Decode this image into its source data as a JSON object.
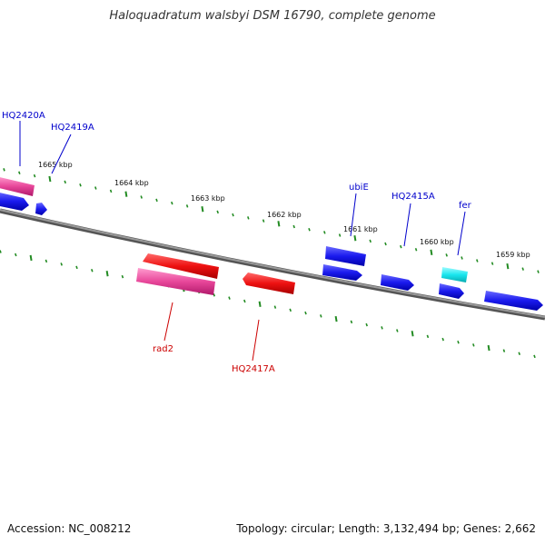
{
  "title": "Haloquadratum walsbyi DSM 16790, complete genome",
  "footer": {
    "accession": "Accession: NC_008212",
    "summary": "Topology: circular; Length: 3,132,494 bp; Genes: 2,662"
  },
  "colors": {
    "backbone": "#7a7a7a",
    "tick": "#228b22",
    "forward_gene_label": "#0000cc",
    "reverse_gene_label": "#cc0000",
    "cds_blue": "#1a1aee",
    "cds_red": "#ee1111",
    "cds_pink": "#e8479a",
    "cds_cyan": "#19e6ee"
  },
  "kbp_labels": [
    "1665 kbp",
    "1664 kbp",
    "1663 kbp",
    "1662 kbp",
    "1661 kbp",
    "1660 kbp",
    "1659 kbp"
  ],
  "genes": [
    {
      "name": "HQ2420A",
      "color": "pink",
      "strand": "forward"
    },
    {
      "name": "HQ2419A",
      "color": "blue",
      "strand": "forward"
    },
    {
      "name": "ubiE",
      "color": "blue",
      "strand": "forward"
    },
    {
      "name": "HQ2415A",
      "color": "blue",
      "strand": "forward"
    },
    {
      "name": "fer",
      "color": "cyan",
      "strand": "forward"
    },
    {
      "name": "rad2",
      "color": "pink",
      "strand": "reverse"
    },
    {
      "name": "HQ2417A",
      "color": "red",
      "strand": "reverse"
    }
  ]
}
